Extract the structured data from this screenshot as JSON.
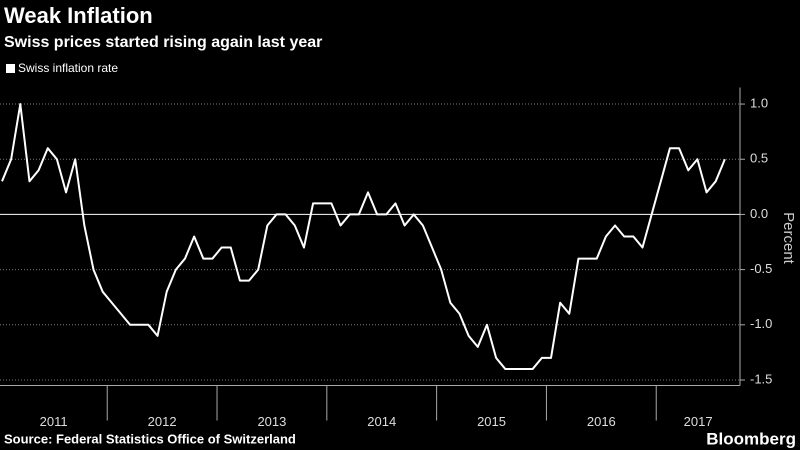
{
  "chart_data": {
    "type": "line",
    "title": "Weak Inflation",
    "subtitle": "Swiss prices started rising again last year",
    "y_label": "Percent",
    "source": "Source: Federal Statistics Office of Switzerland",
    "brand": "Bloomberg",
    "year_labels": [
      "2011",
      "2012",
      "2013",
      "2014",
      "2015",
      "2016",
      "2017"
    ],
    "series": [
      {
        "name": "Swiss inflation rate",
        "color": "#ffffff",
        "values": [
          0.3,
          0.5,
          1.0,
          0.3,
          0.4,
          0.6,
          0.5,
          0.2,
          0.5,
          -0.1,
          -0.5,
          -0.7,
          -0.8,
          -0.9,
          -1.0,
          -1.0,
          -1.0,
          -1.1,
          -0.7,
          -0.5,
          -0.4,
          -0.2,
          -0.4,
          -0.4,
          -0.3,
          -0.3,
          -0.6,
          -0.6,
          -0.5,
          -0.1,
          0.0,
          0.0,
          -0.1,
          -0.3,
          0.1,
          0.1,
          0.1,
          -0.1,
          0.0,
          0.0,
          0.2,
          0.0,
          0.0,
          0.1,
          -0.1,
          0.0,
          -0.1,
          -0.3,
          -0.5,
          -0.8,
          -0.9,
          -1.1,
          -1.2,
          -1.0,
          -1.3,
          -1.4,
          -1.4,
          -1.4,
          -1.4,
          -1.3,
          -1.3,
          -0.8,
          -0.9,
          -0.4,
          -0.4,
          -0.4,
          -0.2,
          -0.1,
          -0.2,
          -0.2,
          -0.3,
          0.0,
          0.3,
          0.6,
          0.6,
          0.4,
          0.5,
          0.2,
          0.3,
          0.5
        ]
      }
    ],
    "ylim": [
      -1.55,
      1.15
    ],
    "yticks": [
      {
        "value": 1.0,
        "label": "1.0"
      },
      {
        "value": 0.5,
        "label": "0.5"
      },
      {
        "value": 0.0,
        "label": "0.0"
      },
      {
        "value": -0.5,
        "label": "-0.5"
      },
      {
        "value": -1.0,
        "label": "-1.0"
      },
      {
        "value": -1.5,
        "label": "-1.5"
      }
    ],
    "grid": true
  }
}
